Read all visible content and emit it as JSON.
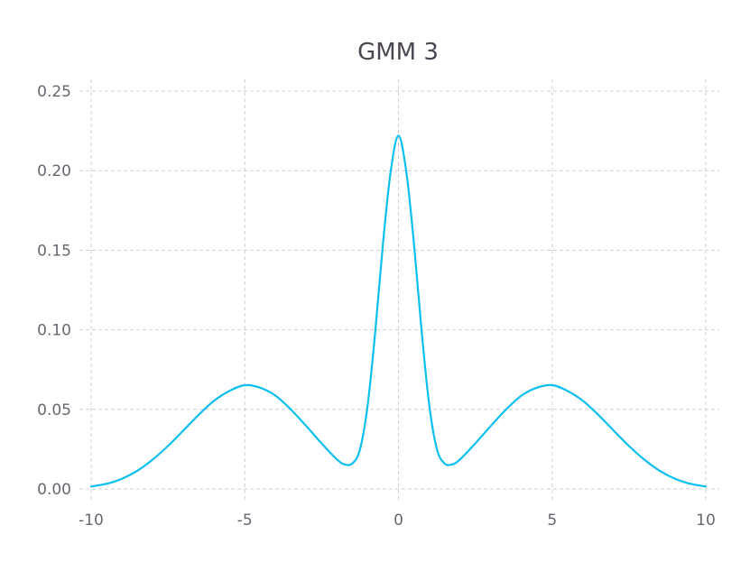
{
  "chart_data": {
    "type": "line",
    "title": "GMM 3",
    "xlabel": "",
    "ylabel": "",
    "xlim": [
      -10,
      10
    ],
    "ylim": [
      0,
      0.25
    ],
    "grid": true,
    "legend": "none",
    "x_ticks": [
      -10,
      -5,
      0,
      5,
      10
    ],
    "x_tick_labels": [
      "-10",
      "-5",
      "0",
      "5",
      "10"
    ],
    "y_ticks": [
      0,
      0.05,
      0.1,
      0.15,
      0.2,
      0.25
    ],
    "y_tick_labels": [
      "0.00",
      "0.05",
      "0.10",
      "0.15",
      "0.20",
      "0.25"
    ],
    "series": [
      {
        "color": "#0bbfef",
        "x": [
          -10,
          -9.5,
          -9,
          -8.5,
          -8,
          -7.5,
          -7,
          -6.5,
          -6,
          -5.5,
          -5,
          -4.5,
          -4,
          -3.5,
          -3,
          -2.5,
          -2,
          -1.75,
          -1.5,
          -1.25,
          -1,
          -0.75,
          -0.5,
          -0.25,
          0,
          0.25,
          0.5,
          0.75,
          1,
          1.25,
          1.5,
          1.75,
          2,
          2.5,
          3,
          3.5,
          4,
          4.5,
          5,
          5.5,
          6,
          6.5,
          7,
          7.5,
          8,
          8.5,
          9,
          9.5,
          10
        ],
        "y": [
          0.0015,
          0.0032,
          0.0064,
          0.0114,
          0.0184,
          0.027,
          0.0367,
          0.0466,
          0.0554,
          0.0616,
          0.0652,
          0.0636,
          0.0586,
          0.0499,
          0.0395,
          0.0286,
          0.0185,
          0.0154,
          0.016,
          0.025,
          0.053,
          0.1,
          0.155,
          0.2,
          0.222,
          0.2,
          0.155,
          0.1,
          0.053,
          0.025,
          0.016,
          0.0154,
          0.0185,
          0.0286,
          0.0395,
          0.0499,
          0.0586,
          0.0636,
          0.0652,
          0.0616,
          0.0554,
          0.0466,
          0.0367,
          0.027,
          0.0184,
          0.0114,
          0.0064,
          0.0032,
          0.0015
        ]
      }
    ]
  }
}
